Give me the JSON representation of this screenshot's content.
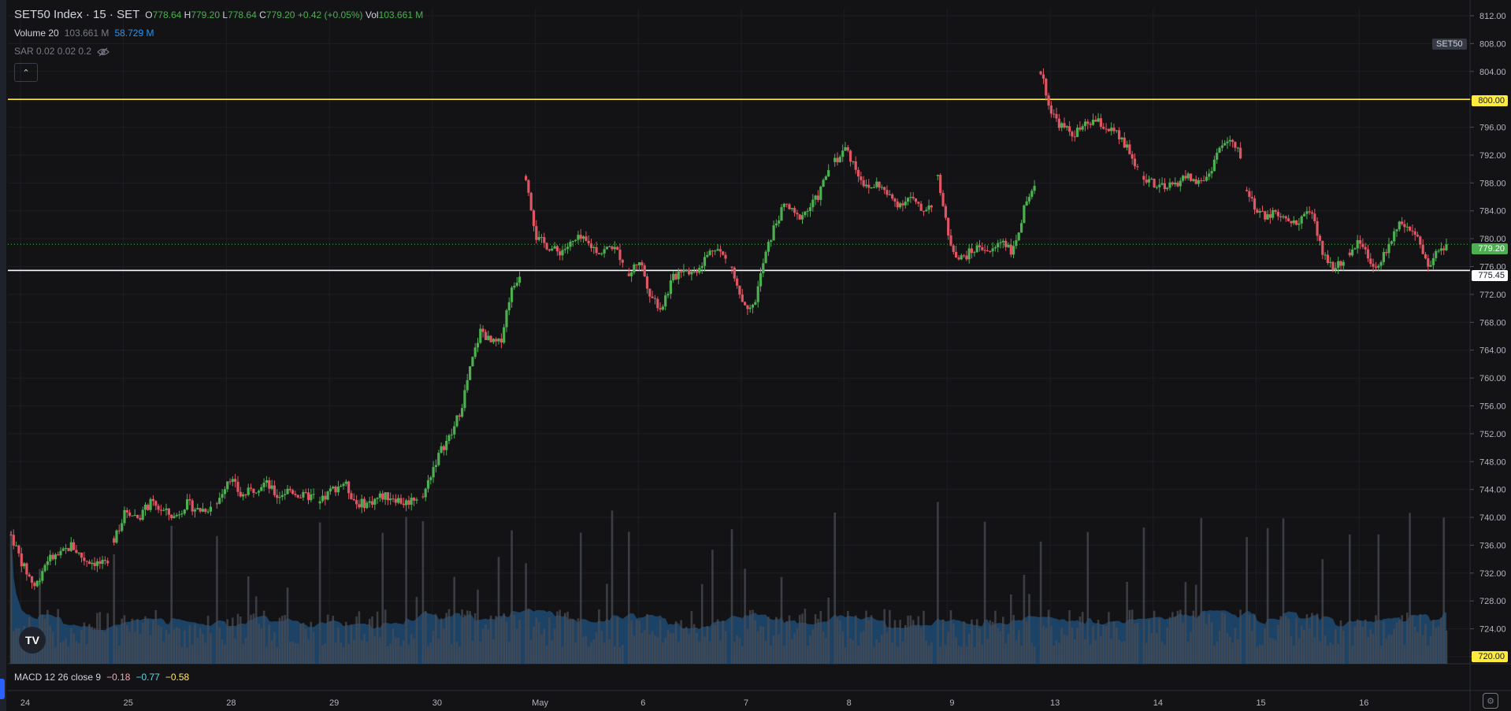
{
  "header": {
    "symbol_title": "SET50 Index · 15 · SET",
    "open_key": "O",
    "open_val": "778.64",
    "high_key": "H",
    "high_val": "779.20",
    "low_key": "L",
    "low_val": "778.64",
    "close_key": "C",
    "close_val": "779.20",
    "change": "+0.42 (+0.05%)",
    "vol_key": "Vol",
    "vol_val": "103.661 M"
  },
  "indicators": {
    "volume_label": "Volume 20",
    "volume_val": "103.661 M",
    "volume_ma": "58.729 M",
    "sar_label": "SAR 0.02 0.02 0.2",
    "macd_label": "MACD 12 26 close 9",
    "macd_v1": "−0.18",
    "macd_v2": "−0.77",
    "macd_v3": "−0.58"
  },
  "symbol_tag": "SET50",
  "price_tags": {
    "resistance": "800.00",
    "current": "779.20",
    "support": "775.45",
    "bottom": "720.00"
  },
  "colors": {
    "up": "#4caf50",
    "down": "#e05563",
    "resistance_line": "#ffeb3b",
    "support_line": "#ffffff",
    "volume_ma_fill": "#1e4b73",
    "volume_bar": "#3a3b40",
    "current_tag": "#4caf50"
  },
  "icons": {
    "eye": "eye-slash-icon",
    "collapse": "chevron-up-icon",
    "logo": "tradingview-logo-icon",
    "settings": "settings-icon"
  },
  "logo_text": "TV",
  "chart_data": {
    "type": "candlestick",
    "title": "SET50 Index · 15 · SET",
    "interval": "15",
    "ylim": [
      720,
      812
    ],
    "y_ticks": [
      "812.00",
      "808.00",
      "804.00",
      "800.00",
      "796.00",
      "792.00",
      "788.00",
      "784.00",
      "780.00",
      "776.00",
      "772.00",
      "768.00",
      "764.00",
      "760.00",
      "756.00",
      "752.00",
      "748.00",
      "744.00",
      "740.00",
      "736.00",
      "732.00",
      "728.00",
      "724.00",
      "720.00"
    ],
    "x_ticks": [
      "24",
      "25",
      "28",
      "29",
      "30",
      "May",
      "6",
      "7",
      "8",
      "9",
      "13",
      "14",
      "15",
      "16"
    ],
    "horizontal_lines": [
      {
        "price": 800.0,
        "label": "800.00"
      },
      {
        "price": 775.45,
        "label": "775.45"
      }
    ],
    "last_price": 779.2,
    "session_path": [
      [
        24,
        [
          737.5,
          733,
          730,
          734,
          734.5,
          736,
          734,
          733.5,
          733
        ]
      ],
      [
        25,
        [
          737,
          741,
          740,
          742,
          741,
          740,
          742,
          741,
          741.5
        ]
      ],
      [
        28,
        [
          742,
          746,
          743,
          744,
          745,
          743,
          744,
          743,
          743
        ]
      ],
      [
        29,
        [
          742,
          744,
          745,
          742,
          742,
          743,
          743,
          742,
          743
        ]
      ],
      [
        30,
        [
          743,
          747,
          750,
          752,
          756,
          762,
          767,
          765,
          765,
          772,
          775
        ]
      ],
      [
        "May",
        [
          789,
          780,
          779,
          778,
          779,
          780,
          779,
          778,
          779,
          777
        ]
      ],
      [
        6,
        [
          775,
          777,
          772,
          770,
          774,
          776,
          775,
          777,
          779,
          777
        ]
      ],
      [
        7,
        [
          776,
          771,
          770,
          777,
          782,
          785,
          783,
          784,
          786,
          790
        ]
      ],
      [
        8,
        [
          791,
          793,
          790,
          787,
          788,
          786,
          785,
          786,
          784,
          785
        ]
      ],
      [
        9,
        [
          789,
          780,
          777,
          778,
          779,
          778,
          780,
          778,
          784,
          787
        ]
      ],
      [
        13,
        [
          804,
          798,
          796,
          795,
          796,
          797,
          796,
          795,
          793,
          790
        ]
      ],
      [
        14,
        [
          789,
          788,
          787,
          788,
          789,
          788,
          789,
          793,
          794,
          792
        ]
      ],
      [
        15,
        [
          787,
          784,
          783,
          784,
          782,
          783,
          784,
          778,
          776,
          777
        ]
      ],
      [
        16,
        [
          778,
          780,
          777,
          776,
          779,
          782,
          781,
          780,
          776,
          778,
          779.2
        ]
      ]
    ],
    "volume_ma_label": "58.729 M",
    "legend": "top-left"
  }
}
